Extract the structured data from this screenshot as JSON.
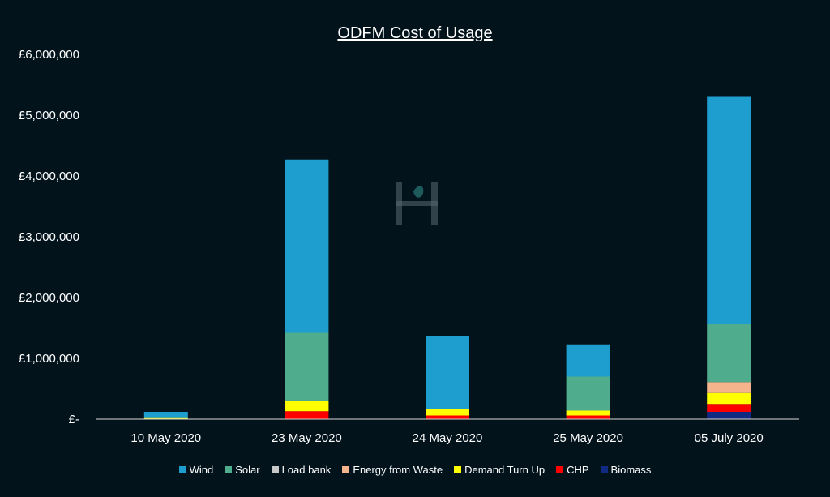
{
  "chart_data": {
    "type": "bar",
    "stacked": true,
    "title": "ODFM Cost of Usage",
    "categories": [
      "10 May 2020",
      "23 May 2020",
      "24 May 2020",
      "25 May 2020",
      "05 July 2020"
    ],
    "ylim": [
      0,
      6000000
    ],
    "yticks": [
      0,
      1000000,
      2000000,
      3000000,
      4000000,
      5000000,
      6000000
    ],
    "ytick_labels": [
      "£-",
      "£1,000,000",
      "£2,000,000",
      "£3,000,000",
      "£4,000,000",
      "£5,000,000",
      "£6,000,000"
    ],
    "grid": false,
    "legend_position": "bottom",
    "series": [
      {
        "name": "Biomass",
        "color": "#0f2a80",
        "values": [
          0,
          0,
          0,
          0,
          120000
        ]
      },
      {
        "name": "CHP",
        "color": "#ff0000",
        "values": [
          0,
          130000,
          60000,
          60000,
          130000
        ]
      },
      {
        "name": "Demand Turn Up",
        "color": "#ffff00",
        "values": [
          20000,
          170000,
          100000,
          80000,
          180000
        ]
      },
      {
        "name": "Energy from Waste",
        "color": "#f5b48c",
        "values": [
          0,
          0,
          0,
          0,
          180000
        ]
      },
      {
        "name": "Load bank",
        "color": "#c8c8c8",
        "values": [
          0,
          0,
          0,
          0,
          0
        ]
      },
      {
        "name": "Solar",
        "color": "#4fad8e",
        "values": [
          20000,
          1120000,
          0,
          560000,
          950000
        ]
      },
      {
        "name": "Wind",
        "color": "#1e9ecf",
        "values": [
          80000,
          2850000,
          1200000,
          530000,
          3740000
        ]
      }
    ],
    "legend_order": [
      "Wind",
      "Solar",
      "Load bank",
      "Energy from Waste",
      "Demand Turn Up",
      "CHP",
      "Biomass"
    ]
  }
}
